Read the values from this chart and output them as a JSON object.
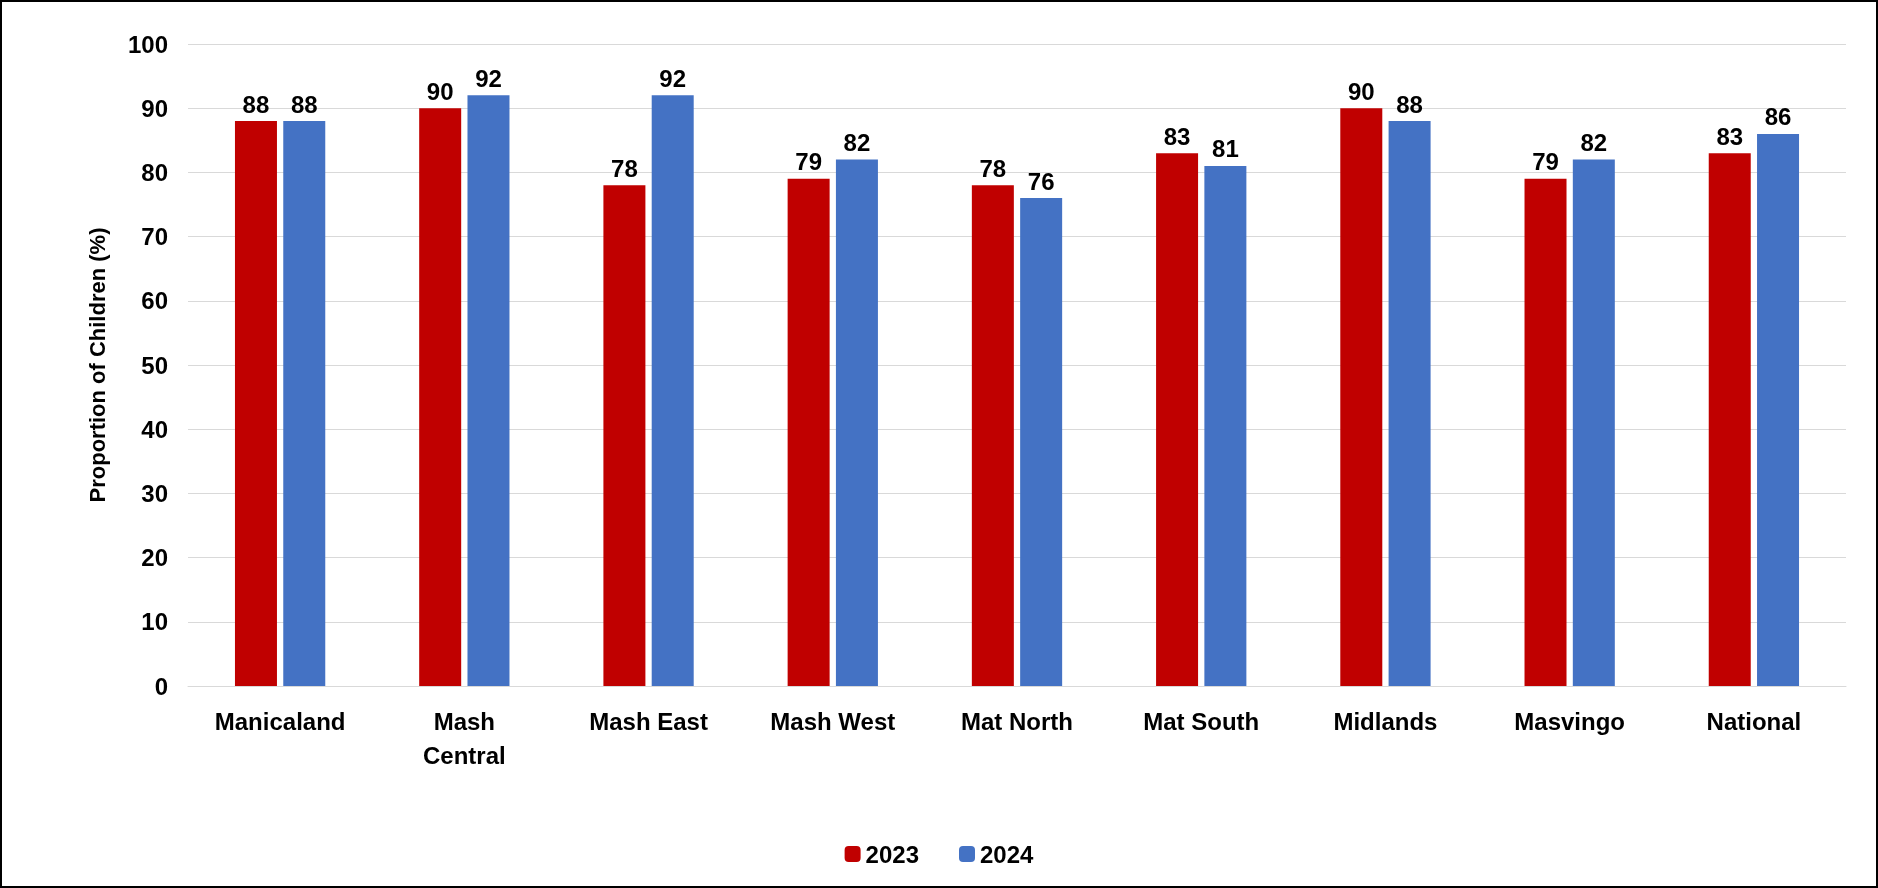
{
  "chart_data": {
    "type": "bar",
    "ylabel": "Proportion of Children (%)",
    "categories": [
      "Manicaland",
      "Mash\nCentral",
      "Mash East",
      "Mash West",
      "Mat North",
      "Mat South",
      "Midlands",
      "Masvingo",
      "National"
    ],
    "series": [
      {
        "name": "2023",
        "color": "#c00000",
        "values": [
          88,
          90,
          78,
          79,
          78,
          83,
          90,
          79,
          83
        ]
      },
      {
        "name": "2024",
        "color": "#4472c4",
        "values": [
          88,
          92,
          92,
          82,
          76,
          81,
          88,
          82,
          86
        ]
      }
    ],
    "ylim": [
      0,
      100
    ],
    "yticks": [
      0,
      10,
      20,
      30,
      40,
      50,
      60,
      70,
      80,
      90,
      100
    ],
    "grid": "y",
    "legend": "bottom",
    "data_labels": true
  }
}
